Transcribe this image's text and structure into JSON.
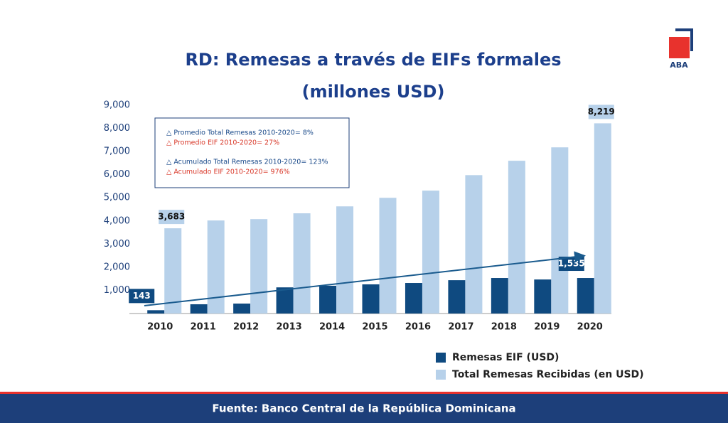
{
  "chart_data": {
    "type": "bar",
    "title": "RD: Remesas a través de EIFs formales",
    "subtitle": "(millones USD)",
    "categories": [
      "2010",
      "2011",
      "2012",
      "2013",
      "2014",
      "2015",
      "2016",
      "2017",
      "2018",
      "2019",
      "2020"
    ],
    "series": [
      {
        "name": "Remesas EIF (USD)",
        "color": "#0f4a80",
        "values": [
          143,
          400,
          430,
          1130,
          1200,
          1260,
          1320,
          1440,
          1535,
          1470,
          1535
        ],
        "value_labels": [
          "143",
          null,
          null,
          null,
          null,
          null,
          null,
          null,
          null,
          null,
          "1,535"
        ]
      },
      {
        "name": "Total Remesas Recibidas (en USD)",
        "color": "#b7d1ea",
        "values": [
          3683,
          4020,
          4080,
          4330,
          4630,
          5000,
          5310,
          5980,
          6600,
          7180,
          8219
        ],
        "value_labels": [
          "3,683",
          null,
          null,
          null,
          null,
          null,
          null,
          null,
          null,
          null,
          "8,219"
        ]
      }
    ],
    "ylim": [
      0,
      9000
    ],
    "yticks": [
      {
        "value": 1000,
        "label": "1,000"
      },
      {
        "value": 2000,
        "label": "2,000"
      },
      {
        "value": 3000,
        "label": "3,000"
      },
      {
        "value": 4000,
        "label": "4,000"
      },
      {
        "value": 5000,
        "label": "5,000"
      },
      {
        "value": 6000,
        "label": "6,000"
      },
      {
        "value": 7000,
        "label": "7,000"
      },
      {
        "value": 8000,
        "label": "8,000"
      },
      {
        "value": 9000,
        "label": "9,000"
      }
    ],
    "grid": false,
    "annotations": [
      "△ Promedio Total Remesas 2010-2020= 8%",
      "△ Promedio EIF 2010-2020= 27%",
      "△ Acumulado Total Remesas 2010-2020= 123%",
      "△ Acumulado EIF 2010-2020= 976%"
    ],
    "source": "Fuente: Banco Central de la República Dominicana",
    "logo": "ABA"
  }
}
